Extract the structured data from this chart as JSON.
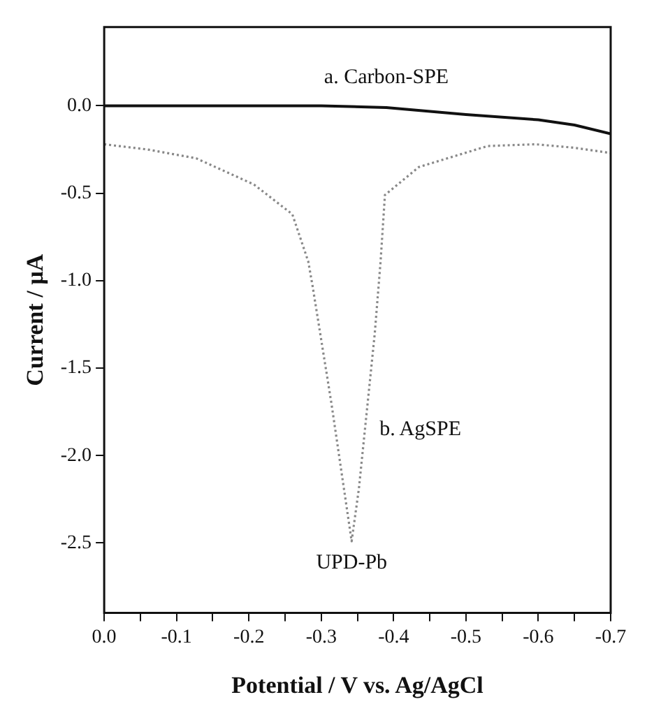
{
  "chart_data": {
    "type": "line",
    "xlabel": "Potential / V vs. Ag/AgCl",
    "ylabel": "Current / µA",
    "xlim": [
      0,
      -0.7
    ],
    "ylim": [
      -2.9,
      0.45
    ],
    "xticks": [
      {
        "value": 0,
        "label": "0.0"
      },
      {
        "value": -0.05,
        "label": null
      },
      {
        "value": -0.1,
        "label": "-0.1"
      },
      {
        "value": -0.15,
        "label": null
      },
      {
        "value": -0.2,
        "label": "-0.2"
      },
      {
        "value": -0.25,
        "label": null
      },
      {
        "value": -0.3,
        "label": "-0.3"
      },
      {
        "value": -0.35,
        "label": null
      },
      {
        "value": -0.4,
        "label": "-0.4"
      },
      {
        "value": -0.45,
        "label": null
      },
      {
        "value": -0.5,
        "label": "-0.5"
      },
      {
        "value": -0.55,
        "label": null
      },
      {
        "value": -0.6,
        "label": "-0.6"
      },
      {
        "value": -0.65,
        "label": null
      },
      {
        "value": -0.7,
        "label": "-0.7"
      }
    ],
    "yticks": [
      {
        "value": 0,
        "label": "0.0"
      },
      {
        "value": -0.5,
        "label": "-0.5"
      },
      {
        "value": -1,
        "label": "-1.0"
      },
      {
        "value": -1.5,
        "label": "-1.5"
      },
      {
        "value": -2,
        "label": "-2.0"
      },
      {
        "value": -2.5,
        "label": "-2.5"
      }
    ],
    "grid": false,
    "legend": false,
    "marker": "none",
    "series": [
      {
        "name": "a. Carbon-SPE",
        "color": "#111111",
        "line_style": "solid",
        "x": [
          0,
          -0.1,
          -0.2,
          -0.3,
          -0.39,
          -0.5,
          -0.6,
          -0.65,
          -0.7
        ],
        "values": [
          0,
          0,
          0,
          0,
          -0.01,
          -0.05,
          -0.08,
          -0.11,
          -0.16
        ]
      },
      {
        "name": "b. AgSPE",
        "color": "#888888",
        "line_style": "dotted",
        "x": [
          0,
          -0.06,
          -0.127,
          -0.207,
          -0.26,
          -0.282,
          -0.288,
          -0.314,
          -0.342,
          -0.352,
          -0.374,
          -0.382,
          -0.388,
          -0.435,
          -0.53,
          -0.596,
          -0.65,
          -0.7
        ],
        "values": [
          -0.22,
          -0.25,
          -0.3,
          -0.45,
          -0.62,
          -0.89,
          -1.03,
          -1.7,
          -2.49,
          -2.19,
          -1.3,
          -0.89,
          -0.51,
          -0.35,
          -0.23,
          -0.22,
          -0.24,
          -0.27
        ]
      }
    ],
    "annotations": [
      {
        "text": "UPD-Pb",
        "x": -0.342,
        "y": -2.49
      }
    ]
  }
}
